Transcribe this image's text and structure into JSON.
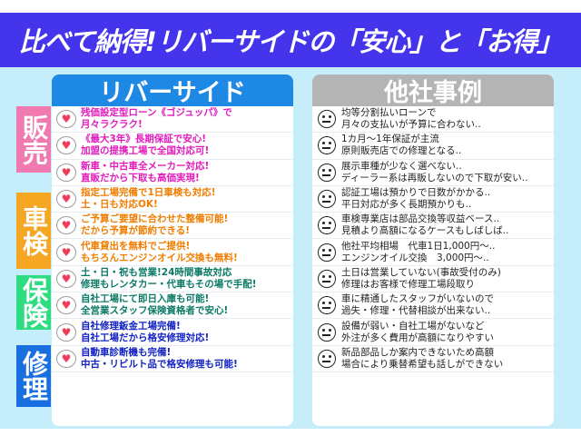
{
  "banner": {
    "title": "比べて納得!リバーサイドの「安心」と「お得」"
  },
  "colors": {
    "banner": "#4434ec",
    "background": "#c6eefa",
    "riverside_header": "#1e88e5",
    "others_header": "#b4b4b4",
    "sales": "#f07ab0",
    "shaken": "#f5a623",
    "insurance": "#2edc82",
    "repair": "#1a6fe0"
  },
  "categories": [
    {
      "label": "販売",
      "color": "#f07ab0"
    },
    {
      "label": "車検",
      "color": "#f5a623"
    },
    {
      "label": "保険",
      "color": "#2edc82"
    },
    {
      "label": "修理",
      "color": "#1a6fe0"
    }
  ],
  "riverside": {
    "title": "リバーサイド",
    "icon": "heart-speech-icon",
    "items": [
      {
        "l1": "残価設定型ローン《ゴジュッパ》で",
        "l2": "月々ラクラク!",
        "cat": "sales"
      },
      {
        "l1": "《最大3年》長期保証で安心!",
        "l2": "加盟の提携工場で全国対応可!",
        "cat": "sales"
      },
      {
        "l1": "新車・中古車全メーカー対応!",
        "l2": "直販だから下取も高価実現!",
        "cat": "sales"
      },
      {
        "l1": "指定工場完備で1日車検も対応!",
        "l2": "土・日も対応OK!",
        "cat": "shaken"
      },
      {
        "l1": "ご予算ご要望に合わせた整備可能!",
        "l2": "だから予算が節約できる!",
        "cat": "shaken"
      },
      {
        "l1": "代車貸出を無料でご提供!",
        "l2": "もちろんエンジンオイル交換も無料!",
        "cat": "shaken"
      },
      {
        "l1": "土・日・祝も営業!24時間事故対応",
        "l2": "修理もレンタカー・代車もその場で手配!",
        "cat": "ins"
      },
      {
        "l1": "自社工場にて即日入庫も可能!",
        "l2": "全営業スタッフ保険資格者で安心!",
        "cat": "ins"
      },
      {
        "l1": "自社修理鈑金工場完備!",
        "l2": "自社工場だから格安修理対応!",
        "cat": "rep"
      },
      {
        "l1": "自動車診断機も完備!",
        "l2": "中古・リビルト品で格安修理も可能!",
        "cat": "rep"
      }
    ]
  },
  "others": {
    "title": "他社事例",
    "icon": "neutral-face-icon",
    "items": [
      {
        "l1": "均等分割払いローンで",
        "l2": "月々の支払いが予算に合わない.."
      },
      {
        "l1": "1カ月～1年保証が主流",
        "l2": "原則販売店での修理となる.."
      },
      {
        "l1": "展示車種が少なく選べない..",
        "l2": "ディーラー系は再販しないので下取が安い.."
      },
      {
        "l1": "認証工場は預かりで日数がかかる..",
        "l2": "平日対応が多く長期預かりも.."
      },
      {
        "l1": "車検専業店は部品交換等収益ベース..",
        "l2": "見積より高額になるケースもしばしば.."
      },
      {
        "l1": "他社平均相場　代車1日1,000円～..",
        "l2": "エンジンオイル交換　3,000円～.."
      },
      {
        "l1": "土日は営業していない(事故受付のみ)",
        "l2": "修理はお客様で修理工場段取り"
      },
      {
        "l1": "車に精通したスタッフがいないので",
        "l2": "過失・修理・代替相談が出来ない.."
      },
      {
        "l1": "設備が弱い・自社工場がないなど",
        "l2": "外注が多く費用が高額になりやすい"
      },
      {
        "l1": "新品部品しか案内できないため高額",
        "l2": "場合により乗替希望も話しができない"
      }
    ]
  }
}
